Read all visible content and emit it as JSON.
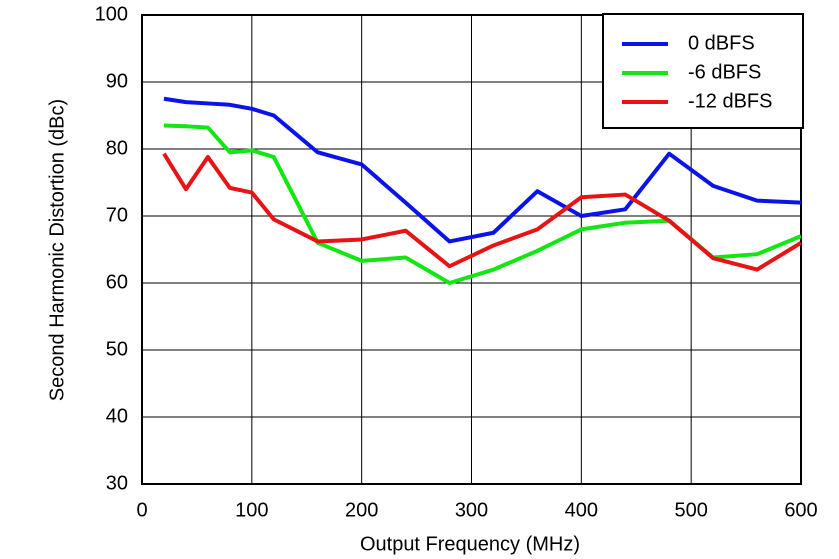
{
  "chart_data": {
    "type": "line",
    "xlabel": "Output Frequency (MHz)",
    "ylabel": "Second Harmonic Distortion (dBc)",
    "x": [
      20,
      40,
      60,
      80,
      100,
      120,
      160,
      200,
      240,
      280,
      320,
      360,
      400,
      440,
      480,
      520,
      560,
      600
    ],
    "series": [
      {
        "name": "0 dBFS",
        "color": "#0a14e6",
        "values": [
          87.5,
          87.0,
          86.8,
          86.6,
          86.0,
          85.0,
          79.5,
          77.7,
          72.0,
          66.2,
          67.5,
          73.7,
          70.0,
          71.0,
          79.3,
          74.5,
          72.3,
          72.0
        ]
      },
      {
        "name": "-6 dBFS",
        "color": "#14e614",
        "values": [
          83.5,
          83.4,
          83.2,
          79.5,
          79.8,
          78.8,
          66.0,
          63.3,
          63.8,
          60.0,
          62.0,
          64.8,
          68.0,
          69.0,
          69.3,
          63.8,
          64.3,
          67.0
        ]
      },
      {
        "name": "-12 dBFS",
        "color": "#e61414",
        "values": [
          79.3,
          74.0,
          78.8,
          74.2,
          73.5,
          69.5,
          66.2,
          66.5,
          67.8,
          62.5,
          65.6,
          68.0,
          72.8,
          73.2,
          69.3,
          63.7,
          62.0,
          66.0
        ]
      }
    ],
    "xlim": [
      0,
      600
    ],
    "xticks": [
      0,
      100,
      200,
      300,
      400,
      500,
      600
    ],
    "ylim": [
      30,
      100
    ],
    "yticks": [
      30,
      40,
      50,
      60,
      70,
      80,
      90,
      100
    ],
    "grid": true,
    "legend": "upper right"
  }
}
